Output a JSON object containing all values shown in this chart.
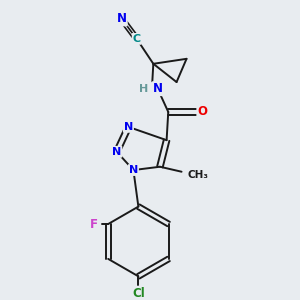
{
  "background_color": "#e8ecf0",
  "bond_color": "#1a1a1a",
  "atom_colors": {
    "N": "#0000ee",
    "O": "#ee0000",
    "F": "#cc44cc",
    "Cl": "#228822",
    "C_teal": "#008888",
    "H": "#669999",
    "C": "#1a1a1a"
  },
  "figsize": [
    3.0,
    3.0
  ],
  "dpi": 100
}
